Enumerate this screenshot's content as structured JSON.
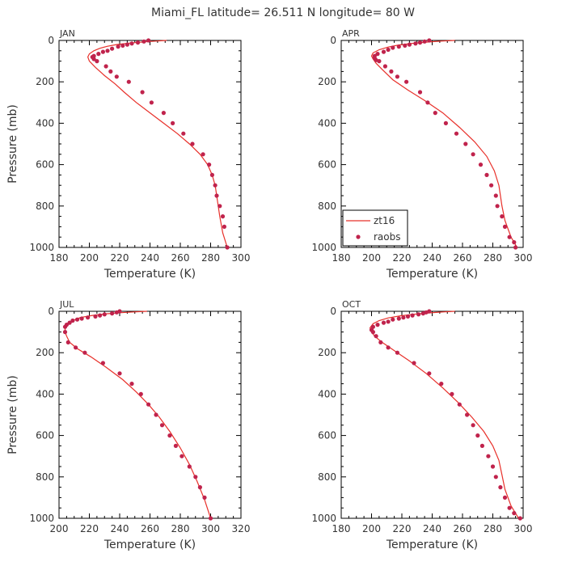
{
  "title": "Miami_FL   latitude= 26.511 N longitude= 80 W",
  "colors": {
    "model": "#e8302a",
    "obs": "#c0234c",
    "frame": "#000000",
    "text": "#333333"
  },
  "chart_data": [
    {
      "type": "line",
      "panel_label": "JAN",
      "xlabel": "Temperature (K)",
      "ylabel": "Pressure (mb)",
      "xlim": [
        180,
        300
      ],
      "ylim": [
        1000,
        0
      ],
      "xticks": [
        180,
        200,
        220,
        240,
        260,
        280,
        300
      ],
      "yticks": [
        0,
        200,
        400,
        600,
        800,
        1000
      ],
      "legend": null,
      "series": [
        {
          "name": "zt16",
          "kind": "line",
          "x": [
            251,
            244,
            236,
            226,
            218,
            212,
            207,
            203,
            200,
            199,
            200,
            204,
            210,
            217,
            223,
            231,
            240,
            249,
            258,
            266,
            273,
            278,
            281,
            283,
            284,
            286,
            288,
            291
          ],
          "y": [
            0,
            3,
            7,
            13,
            20,
            28,
            38,
            50,
            65,
            80,
            100,
            130,
            170,
            210,
            250,
            300,
            350,
            400,
            450,
            500,
            550,
            600,
            650,
            700,
            750,
            850,
            930,
            1000
          ]
        },
        {
          "name": "raobs",
          "kind": "points",
          "x": [
            239,
            236,
            232,
            228,
            225,
            222,
            219,
            215,
            212,
            209,
            206,
            203,
            202,
            203,
            205,
            211,
            214,
            218,
            226,
            235,
            241,
            249,
            255,
            262,
            268,
            275,
            279,
            281,
            283,
            284,
            286,
            288,
            289,
            291
          ],
          "y": [
            0,
            5,
            10,
            15,
            20,
            25,
            30,
            40,
            50,
            55,
            65,
            75,
            80,
            90,
            100,
            125,
            150,
            175,
            200,
            250,
            300,
            350,
            400,
            450,
            500,
            550,
            600,
            650,
            700,
            750,
            800,
            850,
            900,
            1000
          ]
        }
      ]
    },
    {
      "type": "line",
      "panel_label": "APR",
      "xlabel": "Temperature (K)",
      "ylabel": "",
      "xlim": [
        180,
        300
      ],
      "ylim": [
        1000,
        0
      ],
      "xticks": [
        180,
        200,
        220,
        240,
        260,
        280,
        300
      ],
      "yticks": [
        0,
        200,
        400,
        600,
        800,
        1000
      ],
      "legend": {
        "position": "bottom-left",
        "entries": [
          "zt16",
          "raobs"
        ]
      },
      "series": [
        {
          "name": "zt16",
          "kind": "line",
          "x": [
            255,
            246,
            237,
            227,
            218,
            211,
            205,
            201,
            200,
            201,
            203,
            207,
            214,
            224,
            235,
            247,
            258,
            268,
            276,
            281,
            284,
            285,
            286,
            288,
            292,
            296
          ],
          "y": [
            0,
            3,
            8,
            14,
            22,
            32,
            45,
            60,
            75,
            90,
            110,
            140,
            190,
            240,
            290,
            350,
            420,
            490,
            560,
            630,
            700,
            750,
            800,
            870,
            950,
            1000
          ]
        },
        {
          "name": "raobs",
          "kind": "points",
          "x": [
            238,
            235,
            232,
            229,
            225,
            222,
            218,
            214,
            211,
            208,
            204,
            202,
            202,
            203,
            205,
            209,
            213,
            217,
            223,
            232,
            237,
            242,
            249,
            256,
            262,
            267,
            272,
            276,
            279,
            282,
            283,
            286,
            288,
            291,
            294,
            295
          ],
          "y": [
            0,
            5,
            10,
            15,
            20,
            25,
            30,
            35,
            45,
            55,
            65,
            75,
            85,
            95,
            100,
            125,
            150,
            175,
            200,
            250,
            300,
            350,
            400,
            450,
            500,
            550,
            600,
            650,
            700,
            750,
            800,
            850,
            900,
            950,
            975,
            1000
          ]
        }
      ]
    },
    {
      "type": "line",
      "panel_label": "JUL",
      "xlabel": "Temperature (K)",
      "ylabel": "Pressure (mb)",
      "xlim": [
        200,
        320
      ],
      "ylim": [
        1000,
        0
      ],
      "xticks": [
        200,
        220,
        240,
        260,
        280,
        300,
        320
      ],
      "yticks": [
        0,
        200,
        400,
        600,
        800,
        1000
      ],
      "legend": null,
      "series": [
        {
          "name": "zt16",
          "kind": "line",
          "x": [
            258,
            249,
            240,
            231,
            222,
            214,
            209,
            205,
            204,
            204,
            205,
            207,
            212,
            221,
            231,
            242,
            251,
            259,
            266,
            273,
            280,
            286,
            291,
            296,
            300
          ],
          "y": [
            0,
            3,
            7,
            12,
            20,
            30,
            45,
            60,
            80,
            100,
            120,
            150,
            180,
            220,
            270,
            330,
            390,
            450,
            510,
            580,
            660,
            740,
            820,
            910,
            1000
          ]
        },
        {
          "name": "raobs",
          "kind": "points",
          "x": [
            240,
            238,
            235,
            230,
            227,
            224,
            219,
            215,
            212,
            209,
            207,
            205,
            204,
            204,
            206,
            211,
            217,
            229,
            240,
            248,
            254,
            259,
            264,
            268,
            273,
            277,
            281,
            286,
            290,
            293,
            296,
            300
          ],
          "y": [
            0,
            5,
            10,
            15,
            20,
            25,
            30,
            35,
            40,
            45,
            55,
            65,
            75,
            100,
            150,
            175,
            200,
            250,
            300,
            350,
            400,
            450,
            500,
            550,
            600,
            650,
            700,
            750,
            800,
            850,
            900,
            1000
          ]
        }
      ]
    },
    {
      "type": "line",
      "panel_label": "OCT",
      "xlabel": "Temperature (K)",
      "ylabel": "",
      "xlim": [
        180,
        300
      ],
      "ylim": [
        1000,
        0
      ],
      "xticks": [
        180,
        200,
        220,
        240,
        260,
        280,
        300
      ],
      "yticks": [
        0,
        200,
        400,
        600,
        800,
        1000
      ],
      "legend": null,
      "series": [
        {
          "name": "zt16",
          "kind": "line",
          "x": [
            255,
            247,
            238,
            228,
            219,
            211,
            205,
            201,
            199,
            200,
            202,
            207,
            215,
            225,
            236,
            247,
            257,
            266,
            274,
            280,
            284,
            286,
            288,
            292,
            297
          ],
          "y": [
            0,
            3,
            8,
            14,
            22,
            32,
            45,
            60,
            80,
            100,
            120,
            150,
            190,
            240,
            300,
            370,
            440,
            510,
            580,
            650,
            720,
            790,
            860,
            940,
            1000
          ]
        },
        {
          "name": "raobs",
          "kind": "points",
          "x": [
            238,
            236,
            234,
            231,
            227,
            224,
            221,
            218,
            214,
            211,
            208,
            204,
            201,
            200,
            201,
            203,
            206,
            211,
            217,
            228,
            238,
            246,
            253,
            258,
            263,
            267,
            270,
            273,
            277,
            280,
            282,
            285,
            288,
            291,
            294,
            298
          ],
          "y": [
            0,
            5,
            10,
            15,
            20,
            25,
            30,
            35,
            40,
            50,
            55,
            65,
            75,
            90,
            100,
            120,
            150,
            175,
            200,
            250,
            300,
            350,
            400,
            450,
            500,
            550,
            600,
            650,
            700,
            750,
            800,
            850,
            900,
            950,
            975,
            1000
          ]
        }
      ]
    }
  ]
}
